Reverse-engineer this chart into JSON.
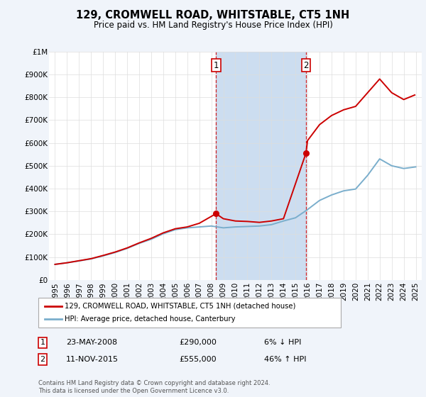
{
  "title": "129, CROMWELL ROAD, WHITSTABLE, CT5 1NH",
  "subtitle": "Price paid vs. HM Land Registry's House Price Index (HPI)",
  "legend_label_red": "129, CROMWELL ROAD, WHITSTABLE, CT5 1NH (detached house)",
  "legend_label_blue": "HPI: Average price, detached house, Canterbury",
  "annotation1_date": "23-MAY-2008",
  "annotation1_price": "£290,000",
  "annotation1_hpi": "6% ↓ HPI",
  "annotation2_date": "11-NOV-2015",
  "annotation2_price": "£555,000",
  "annotation2_hpi": "46% ↑ HPI",
  "footer": "Contains HM Land Registry data © Crown copyright and database right 2024.\nThis data is licensed under the Open Government Licence v3.0.",
  "hpi_x": [
    1995,
    1996,
    1997,
    1998,
    1999,
    2000,
    2001,
    2002,
    2003,
    2004,
    2005,
    2006,
    2007,
    2008,
    2009,
    2010,
    2011,
    2012,
    2013,
    2014,
    2015,
    2016,
    2017,
    2018,
    2019,
    2020,
    2021,
    2022,
    2023,
    2024,
    2025
  ],
  "hpi_y": [
    68000,
    75000,
    83000,
    92000,
    105000,
    120000,
    138000,
    160000,
    178000,
    202000,
    220000,
    228000,
    232000,
    236000,
    228000,
    232000,
    234000,
    236000,
    242000,
    258000,
    272000,
    308000,
    348000,
    372000,
    390000,
    398000,
    458000,
    530000,
    500000,
    488000,
    495000
  ],
  "red_x": [
    1995,
    1996,
    1997,
    1998,
    1999,
    2000,
    2001,
    2002,
    2003,
    2004,
    2005,
    2006,
    2007,
    2008.39,
    2009,
    2010,
    2011,
    2012,
    2013,
    2014,
    2015.87,
    2016,
    2017,
    2018,
    2019,
    2020,
    2021,
    2022,
    2023,
    2024,
    2024.92
  ],
  "red_y": [
    68000,
    75000,
    84000,
    93000,
    107000,
    122000,
    140000,
    162000,
    182000,
    206000,
    224000,
    232000,
    248000,
    290000,
    268000,
    258000,
    256000,
    252000,
    258000,
    268000,
    555000,
    610000,
    680000,
    720000,
    745000,
    760000,
    820000,
    880000,
    820000,
    790000,
    810000
  ],
  "sale1_x": 2008.39,
  "sale1_y": 290000,
  "sale2_x": 2015.87,
  "sale2_y": 555000,
  "vline1_x": 2008.39,
  "vline2_x": 2015.87,
  "ylim": [
    0,
    1000000
  ],
  "xlim_left": 1994.5,
  "xlim_right": 2025.5,
  "background_color": "#f0f4fa",
  "plot_bg_color": "#ffffff",
  "red_color": "#cc0000",
  "blue_color": "#7aaecc",
  "vline_color": "#cc0000",
  "span_color": "#ccddf0",
  "grid_color": "#dddddd"
}
